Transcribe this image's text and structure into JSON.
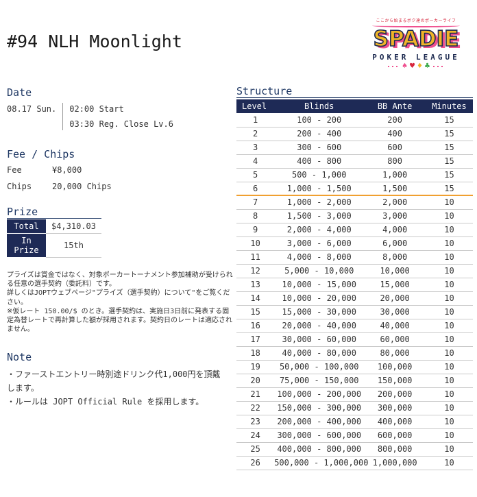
{
  "title": "#94 NLH Moonlight",
  "logo": {
    "tagline": "ここから始まるボク達のポーカーライフ",
    "brand": "SPADIE",
    "subtitle": "POKER LEAGUE",
    "suits": [
      {
        "name": "spade",
        "glyph": "♠",
        "color": "#ef4f8f"
      },
      {
        "name": "heart",
        "glyph": "♥",
        "color": "#d7263d"
      },
      {
        "name": "diamond",
        "glyph": "♦",
        "color": "#f0b428"
      },
      {
        "name": "club",
        "glyph": "♣",
        "color": "#3faa4c"
      }
    ]
  },
  "date": {
    "heading": "Date",
    "date_label": "08.17 Sun.",
    "lines": [
      "02:00 Start",
      "03:30 Reg. Close Lv.6"
    ]
  },
  "fee_chips": {
    "heading": "Fee / Chips",
    "rows": [
      {
        "label": "Fee",
        "value": "¥8,000"
      },
      {
        "label": "Chips",
        "value": "20,000 Chips"
      }
    ]
  },
  "prize": {
    "heading": "Prize",
    "rows": [
      {
        "label": "Total",
        "value": "$4,310.03"
      },
      {
        "label": "In Prize",
        "value": "15th"
      }
    ],
    "disclaimer": "プライズは賞金ではなく、対象ポーカートーナメント参加補助が受けられる任意の選手契約（委託料）です。\n詳しくはJOPTウェブページ\"プライズ（選手契約）について\"をご覧ください。\n※仮レート 150.00/$ のとき。選手契約は、実施日3日前に発表する固定為替レートで再計算した額が採用されます。契約日のレートは適応されません。"
  },
  "note": {
    "heading": "Note",
    "items": [
      "・ファーストエントリー時別途ドリンク代1,000円を頂戴します。",
      "・ルールは JOPT Official Rule を採用します。"
    ]
  },
  "structure": {
    "heading": "Structure",
    "columns": [
      "Level",
      "Blinds",
      "BB Ante",
      "Minutes"
    ],
    "reg_close_after_level": 6,
    "levels": [
      {
        "level": "1",
        "blinds": "100 - 200",
        "bb_ante": "200",
        "minutes": "15"
      },
      {
        "level": "2",
        "blinds": "200 - 400",
        "bb_ante": "400",
        "minutes": "15"
      },
      {
        "level": "3",
        "blinds": "300 - 600",
        "bb_ante": "600",
        "minutes": "15"
      },
      {
        "level": "4",
        "blinds": "400 - 800",
        "bb_ante": "800",
        "minutes": "15"
      },
      {
        "level": "5",
        "blinds": "500 - 1,000",
        "bb_ante": "1,000",
        "minutes": "15"
      },
      {
        "level": "6",
        "blinds": "1,000 - 1,500",
        "bb_ante": "1,500",
        "minutes": "15"
      },
      {
        "level": "7",
        "blinds": "1,000 - 2,000",
        "bb_ante": "2,000",
        "minutes": "10"
      },
      {
        "level": "8",
        "blinds": "1,500 - 3,000",
        "bb_ante": "3,000",
        "minutes": "10"
      },
      {
        "level": "9",
        "blinds": "2,000 - 4,000",
        "bb_ante": "4,000",
        "minutes": "10"
      },
      {
        "level": "10",
        "blinds": "3,000 - 6,000",
        "bb_ante": "6,000",
        "minutes": "10"
      },
      {
        "level": "11",
        "blinds": "4,000 - 8,000",
        "bb_ante": "8,000",
        "minutes": "10"
      },
      {
        "level": "12",
        "blinds": "5,000 - 10,000",
        "bb_ante": "10,000",
        "minutes": "10"
      },
      {
        "level": "13",
        "blinds": "10,000 - 15,000",
        "bb_ante": "15,000",
        "minutes": "10"
      },
      {
        "level": "14",
        "blinds": "10,000 - 20,000",
        "bb_ante": "20,000",
        "minutes": "10"
      },
      {
        "level": "15",
        "blinds": "15,000 - 30,000",
        "bb_ante": "30,000",
        "minutes": "10"
      },
      {
        "level": "16",
        "blinds": "20,000 - 40,000",
        "bb_ante": "40,000",
        "minutes": "10"
      },
      {
        "level": "17",
        "blinds": "30,000 - 60,000",
        "bb_ante": "60,000",
        "minutes": "10"
      },
      {
        "level": "18",
        "blinds": "40,000 - 80,000",
        "bb_ante": "80,000",
        "minutes": "10"
      },
      {
        "level": "19",
        "blinds": "50,000 - 100,000",
        "bb_ante": "100,000",
        "minutes": "10"
      },
      {
        "level": "20",
        "blinds": "75,000 - 150,000",
        "bb_ante": "150,000",
        "minutes": "10"
      },
      {
        "level": "21",
        "blinds": "100,000 - 200,000",
        "bb_ante": "200,000",
        "minutes": "10"
      },
      {
        "level": "22",
        "blinds": "150,000 - 300,000",
        "bb_ante": "300,000",
        "minutes": "10"
      },
      {
        "level": "23",
        "blinds": "200,000 - 400,000",
        "bb_ante": "400,000",
        "minutes": "10"
      },
      {
        "level": "24",
        "blinds": "300,000 - 600,000",
        "bb_ante": "600,000",
        "minutes": "10"
      },
      {
        "level": "25",
        "blinds": "400,000 - 800,000",
        "bb_ante": "800,000",
        "minutes": "10"
      },
      {
        "level": "26",
        "blinds": "500,000 - 1,000,000",
        "bb_ante": "1,000,000",
        "minutes": "10"
      }
    ]
  },
  "colors": {
    "navy": "#1e2a56",
    "heading_blue": "#1f3864",
    "reg_close_line": "#f0a030",
    "row_line": "#c9c9c9",
    "logo_yellow": "#f0b428",
    "logo_pink": "#ef4f8f",
    "logo_navy": "#1d2a50",
    "logo_red": "#d7263d"
  }
}
